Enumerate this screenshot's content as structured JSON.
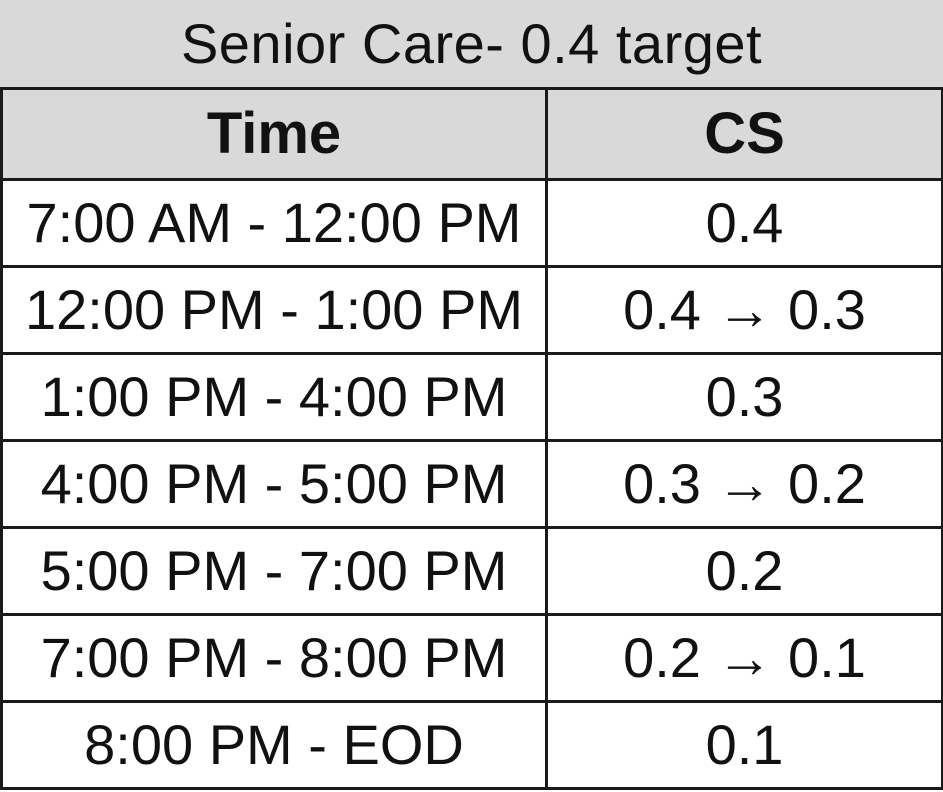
{
  "title": "Senior Care- 0.4 target",
  "table": {
    "headers": {
      "time": "Time",
      "cs": "CS"
    },
    "rows": [
      {
        "time": "7:00 AM - 12:00 PM",
        "cs": "0.4"
      },
      {
        "time": "12:00 PM - 1:00 PM",
        "cs": "0.4 → 0.3"
      },
      {
        "time": "1:00 PM - 4:00 PM",
        "cs": "0.3"
      },
      {
        "time": "4:00 PM - 5:00 PM",
        "cs": "0.3 → 0.2"
      },
      {
        "time": "5:00 PM - 7:00 PM",
        "cs": "0.2"
      },
      {
        "time": "7:00 PM - 8:00 PM",
        "cs": "0.2 → 0.1"
      },
      {
        "time": "8:00 PM - EOD",
        "cs": "0.1"
      }
    ]
  },
  "colors": {
    "header_background": "#d9d9d9",
    "border": "#1a1a1a",
    "text": "#111111",
    "cell_background": "#ffffff"
  }
}
